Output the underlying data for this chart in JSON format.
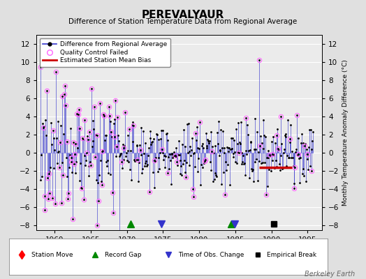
{
  "title": "PEREVALYAUR",
  "subtitle": "Difference of Station Temperature Data from Regional Average",
  "ylabel_right": "Monthly Temperature Anomaly Difference (°C)",
  "xlim": [
    1957.5,
    1997.0
  ],
  "ylim": [
    -8.5,
    13.0
  ],
  "yticks": [
    -8,
    -6,
    -4,
    -2,
    0,
    2,
    4,
    6,
    8,
    10,
    12
  ],
  "xticks": [
    1960,
    1965,
    1970,
    1975,
    1980,
    1985,
    1990,
    1995
  ],
  "background_color": "#e0e0e0",
  "plot_bg_color": "#ebebeb",
  "grid_color": "#ffffff",
  "line_color": "#3333cc",
  "qc_marker_color": "#ff66ff",
  "bias_color": "#cc0000",
  "bias_start": 1988.3,
  "bias_end": 1992.8,
  "bias_value": -1.6,
  "record_gaps": [
    1970.5,
    1984.4
  ],
  "obs_changes": [
    1974.8,
    1984.9
  ],
  "empirical_breaks": [
    1990.3
  ],
  "station_moves": [],
  "watermark": "Berkeley Earth",
  "seed": 777
}
